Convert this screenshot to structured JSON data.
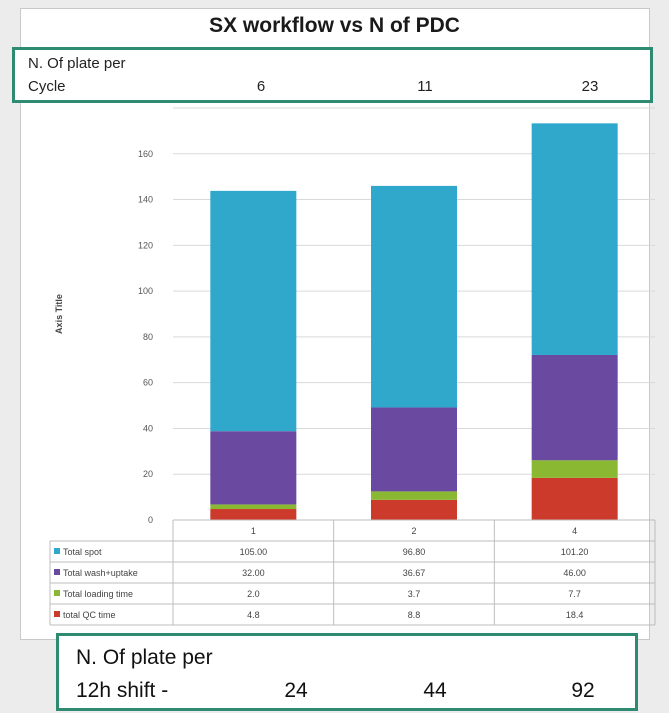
{
  "title": "SX workflow vs N of PDC",
  "plates_per_cycle": {
    "label_line1": "N. Of plate per",
    "label_line2": "Cycle",
    "values": [
      "6",
      "11",
      "23"
    ]
  },
  "plates_per_shift": {
    "label_line1": "N. Of plate per",
    "label_line2": "12h shift -",
    "values": [
      "24",
      "44",
      "92"
    ]
  },
  "colors": {
    "frame_border": "#2e8b72",
    "total_spot": "#2fa8cc",
    "total_wash_uptake": "#6a4aa0",
    "total_loading_time": "#8ab832",
    "total_qc_time": "#cc3a2c"
  },
  "chart_data": {
    "type": "bar",
    "stacked": true,
    "title": "SX workflow vs N of PDC",
    "ylabel": "Axis Title",
    "xlabel": "",
    "categories": [
      "1",
      "2",
      "4"
    ],
    "ylim": [
      0,
      180
    ],
    "yticks": [
      0,
      20,
      40,
      60,
      80,
      100,
      120,
      140,
      160,
      180
    ],
    "ytick_labels": [
      "0",
      "20",
      "40",
      "60",
      "80",
      "100",
      "120",
      "140",
      "160",
      ""
    ],
    "grid": true,
    "legend": "data-table",
    "series": [
      {
        "name": "total QC time",
        "values": [
          4.8,
          8.8,
          18.4
        ],
        "labels": [
          "4.8",
          "8.8",
          "18.4"
        ],
        "color": "#cc3a2c"
      },
      {
        "name": "Total loading time",
        "values": [
          2.0,
          3.7,
          7.7
        ],
        "labels": [
          "2.0",
          "3.7",
          "7.7"
        ],
        "color": "#8ab832"
      },
      {
        "name": "Total wash+uptake",
        "values": [
          32.0,
          36.67,
          46.0
        ],
        "labels": [
          "32.00",
          "36.67",
          "46.00"
        ],
        "color": "#6a4aa0"
      },
      {
        "name": "Total spot",
        "values": [
          105.0,
          96.8,
          101.2
        ],
        "labels": [
          "105.00",
          "96.80",
          "101.20"
        ],
        "color": "#2fa8cc"
      }
    ],
    "table_order": [
      "Total spot",
      "Total wash+uptake",
      "Total loading time",
      "total QC time"
    ]
  }
}
